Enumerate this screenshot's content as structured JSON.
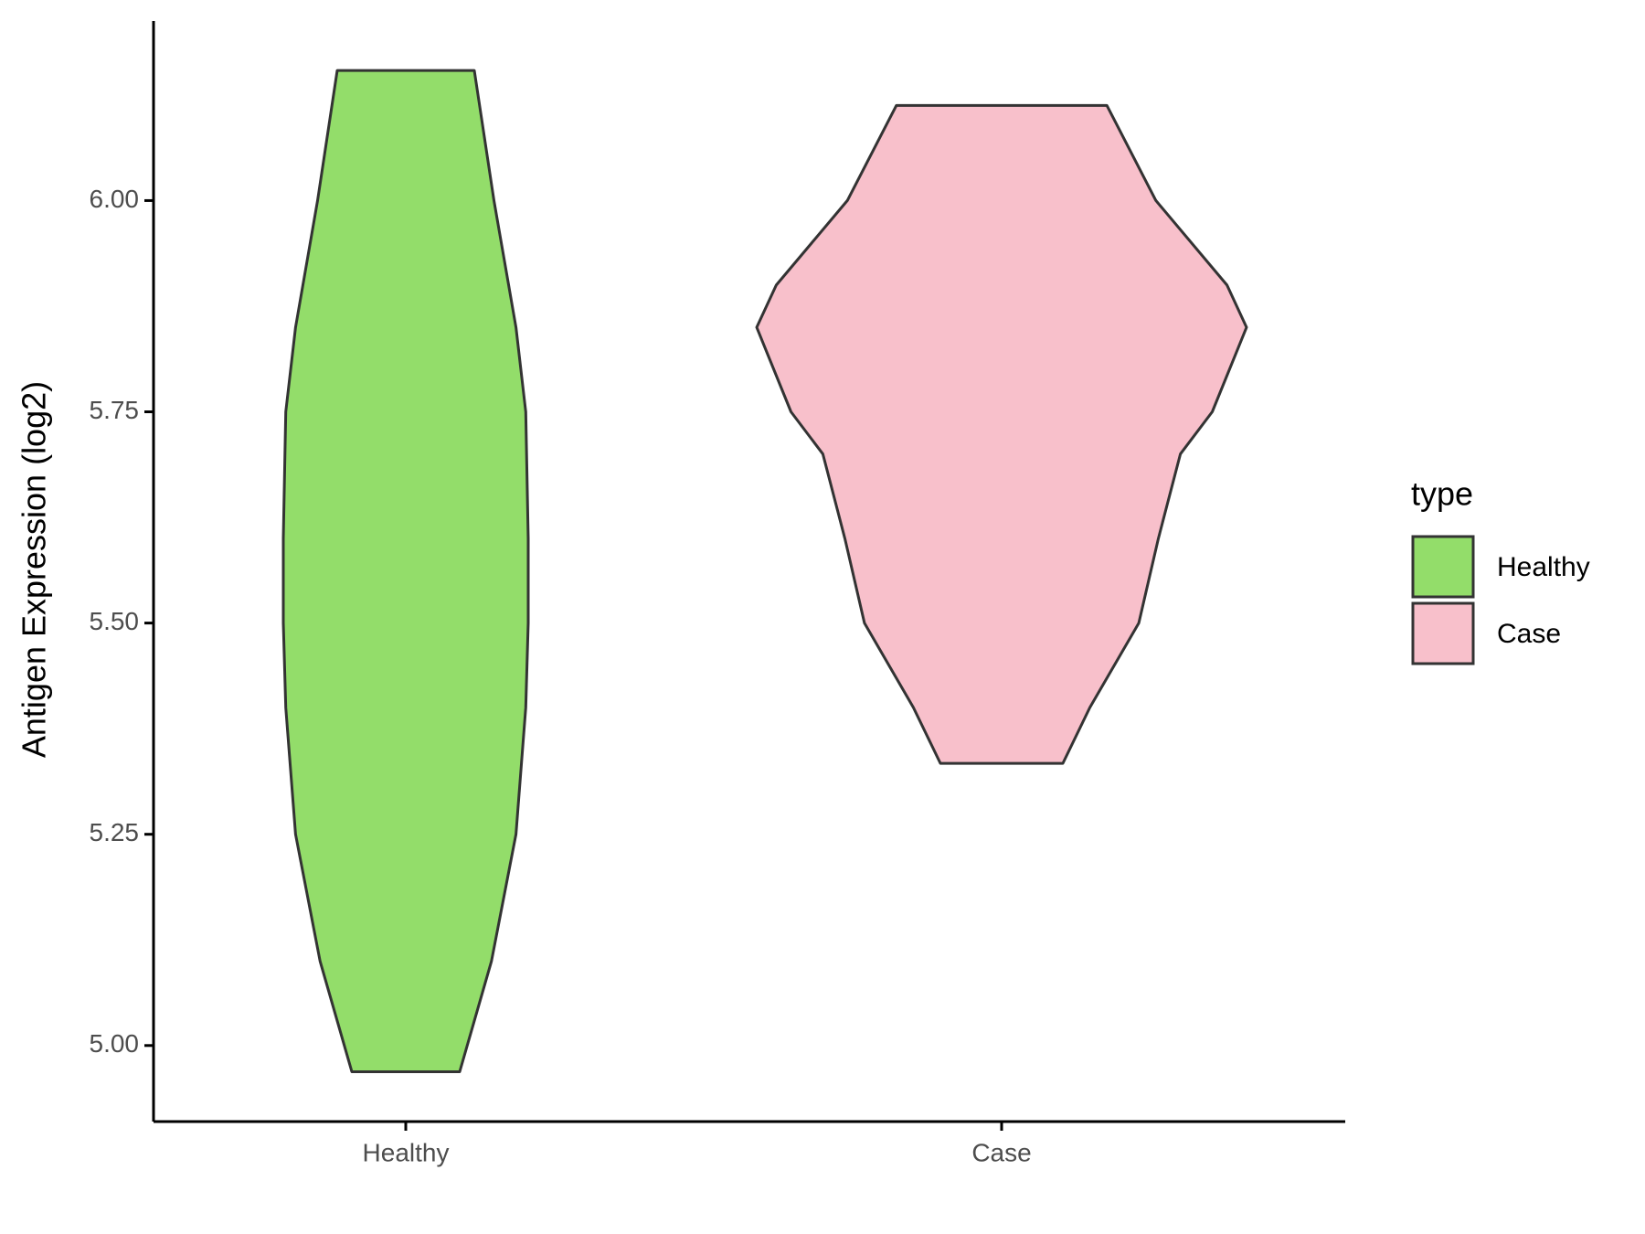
{
  "chart_data": {
    "type": "violin",
    "y_label": "Antigen Expression (log2)",
    "categories": [
      "Healthy",
      "Case"
    ],
    "series": [
      {
        "name": "Healthy",
        "color": "#93dd6a",
        "y": [
          6.154,
          6.0,
          5.85,
          5.75,
          5.6,
          5.5,
          5.4,
          5.25,
          5.1,
          4.969
        ],
        "width": [
          0.28,
          0.36,
          0.45,
          0.49,
          0.5,
          0.5,
          0.49,
          0.45,
          0.35,
          0.22
        ]
      },
      {
        "name": "Case",
        "color": "#f8c0cb",
        "y": [
          6.1125,
          6.0,
          5.9,
          5.85,
          5.75,
          5.7,
          5.6,
          5.5,
          5.4,
          5.334
        ],
        "width": [
          0.43,
          0.63,
          0.92,
          1.0,
          0.86,
          0.73,
          0.64,
          0.56,
          0.36,
          0.25
        ]
      }
    ],
    "ylim": [
      4.91,
      6.2125
    ],
    "yticks": [
      {
        "value": 5,
        "label": "5.00"
      },
      {
        "value": 5.25,
        "label": "5.25"
      },
      {
        "value": 5.5,
        "label": "5.50"
      },
      {
        "value": 5.75,
        "label": "5.75"
      },
      {
        "value": 6,
        "label": "6.00"
      }
    ],
    "legend_title": "type",
    "legend_position": "right"
  }
}
